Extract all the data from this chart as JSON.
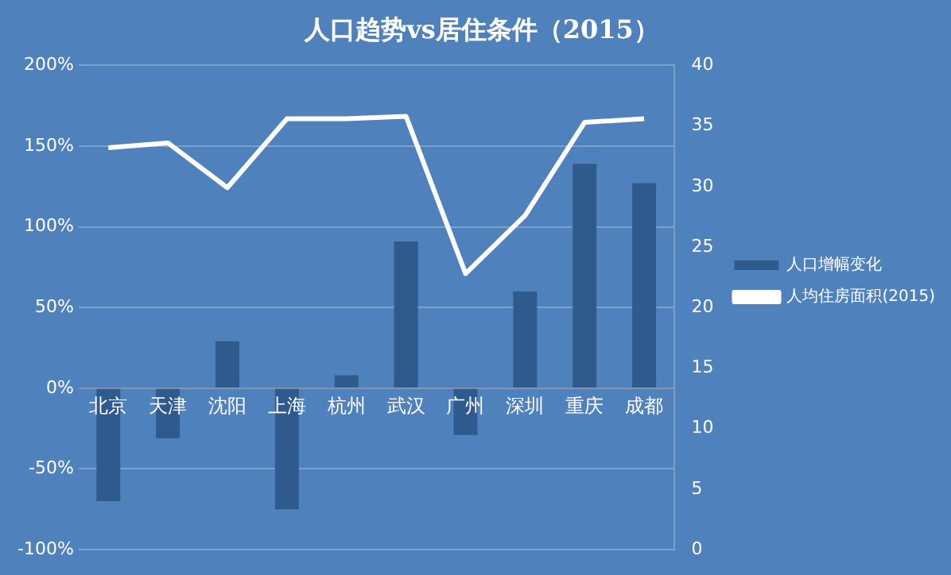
{
  "chart_data": {
    "type": "bar",
    "title": "人口趋势vs居住条件（2015）",
    "categories": [
      "北京",
      "天津",
      "沈阳",
      "上海",
      "杭州",
      "武汉",
      "广州",
      "深圳",
      "重庆",
      "成都"
    ],
    "series": [
      {
        "name": "人口增幅变化",
        "color": "#2f5a8e",
        "values": [
          -70,
          -31,
          29,
          -75,
          8,
          91,
          -29,
          60,
          139,
          127
        ]
      },
      {
        "name": "人均住房面积(2015)",
        "type": "line",
        "axis": "y2",
        "color": "#ffffff",
        "values": [
          33.2,
          33.6,
          29.9,
          35.6,
          35.6,
          35.8,
          22.8,
          27.6,
          35.3,
          35.6
        ]
      }
    ],
    "ylim": [
      -100,
      200
    ],
    "yticks": [
      {
        "value": -100,
        "label": "-100%"
      },
      {
        "value": -50,
        "label": "-50%"
      },
      {
        "value": 0,
        "label": "0%"
      },
      {
        "value": 50,
        "label": "50%"
      },
      {
        "value": 100,
        "label": "100%"
      },
      {
        "value": 150,
        "label": "150%"
      },
      {
        "value": 200,
        "label": "200%"
      }
    ],
    "y2lim": [
      0,
      40
    ],
    "y2ticks": [
      0,
      5,
      10,
      15,
      20,
      25,
      30,
      35,
      40
    ],
    "grid": "y",
    "legend": "right",
    "marker": "none",
    "line_style": "solid"
  }
}
